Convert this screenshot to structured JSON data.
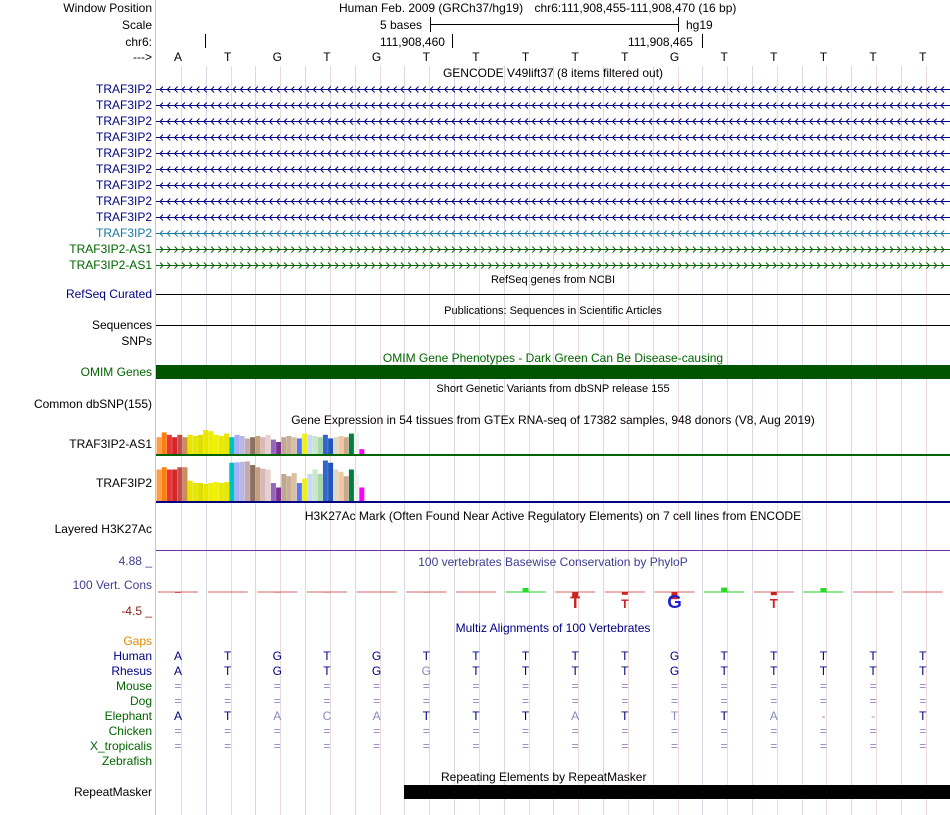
{
  "header": {
    "window_position_label": "Window Position",
    "assembly": "Human Feb. 2009 (GRCh37/hg19)",
    "position": "chr6:111,908,455-111,908,470 (16 bp)",
    "scale_label": "Scale",
    "scale_text": "5 bases",
    "scale_db": "hg19",
    "chrom_label": "chr6:",
    "coord1": "111,908,460",
    "coord2": "111,908,465",
    "strand_label": "--->"
  },
  "bases": [
    "A",
    "T",
    "G",
    "T",
    "G",
    "T",
    "T",
    "T",
    "T",
    "T",
    "G",
    "T",
    "T",
    "T",
    "T",
    "T"
  ],
  "gencode": {
    "title": "GENCODE V49lift37 (8 items filtered out)",
    "items": [
      {
        "label": "TRAF3IP2",
        "dir": "rev",
        "color": "#000080"
      },
      {
        "label": "TRAF3IP2",
        "dir": "rev",
        "color": "#000080"
      },
      {
        "label": "TRAF3IP2",
        "dir": "rev",
        "color": "#000080"
      },
      {
        "label": "TRAF3IP2",
        "dir": "rev",
        "color": "#000080"
      },
      {
        "label": "TRAF3IP2",
        "dir": "rev",
        "color": "#000080"
      },
      {
        "label": "TRAF3IP2",
        "dir": "rev",
        "color": "#000080"
      },
      {
        "label": "TRAF3IP2",
        "dir": "rev",
        "color": "#000080"
      },
      {
        "label": "TRAF3IP2",
        "dir": "rev",
        "color": "#000080"
      },
      {
        "label": "TRAF3IP2",
        "dir": "rev",
        "color": "#000080"
      },
      {
        "label": "TRAF3IP2",
        "dir": "rev",
        "color": "#1a7aa0"
      },
      {
        "label": "TRAF3IP2-AS1",
        "dir": "fwd",
        "color": "#006400"
      },
      {
        "label": "TRAF3IP2-AS1",
        "dir": "fwd",
        "color": "#006400"
      }
    ]
  },
  "refseq": {
    "title": "RefSeq genes from NCBI",
    "label": "RefSeq Curated"
  },
  "publications": {
    "title": "Publications: Sequences in Scientific Articles",
    "label": "Sequences"
  },
  "snps_label": "SNPs",
  "omim": {
    "title": "OMIM Gene Phenotypes - Dark Green Can Be Disease-causing",
    "label": "OMIM Genes",
    "color": "#005500"
  },
  "dbsnp": {
    "title": "Short Genetic Variants from dbSNP release 155",
    "label": "Common dbSNP(155)"
  },
  "gtex": {
    "title": "Gene Expression in 54 tissues from GTEx RNA-seq of 17382 samples, 948 donors (V8, Aug 2019)",
    "colors": [
      "#ff9e4a",
      "#ff7f0e",
      "#e33",
      "#d62728",
      "#c05050",
      "#cd8c5c",
      "#e6e600",
      "#e6e600",
      "#dddd00",
      "#e6e600",
      "#eeee00",
      "#f0f000",
      "#e8e800",
      "#e6e600",
      "#00c0c0",
      "#aaaaff",
      "#b8b8e0",
      "#c8a8a8",
      "#8c7060",
      "#c0a080",
      "#d8b8b8",
      "#e8d0d0",
      "#9467bd",
      "#7a3090",
      "#c0a890",
      "#c8b098",
      "#d8c0a0",
      "#5577ff",
      "#eeee22",
      "#c8d8f8",
      "#c8e8c8",
      "#a8d8a8",
      "#3366cc",
      "#2255bb",
      "#ddd8c8",
      "#f0c8a0",
      "#c8a890",
      "#008040",
      "#f0f0f0",
      "#ff00ff"
    ],
    "tracks": [
      {
        "label": "TRAF3IP2-AS1",
        "values": [
          0.7,
          0.9,
          0.8,
          0.7,
          0.8,
          0.7,
          0.8,
          0.75,
          0.8,
          1.0,
          0.95,
          0.8,
          0.75,
          0.85,
          0.7,
          0.8,
          0.75,
          0.65,
          0.7,
          0.75,
          0.7,
          0.8,
          0.6,
          0.5,
          0.7,
          0.75,
          0.7,
          0.65,
          0.85,
          0.8,
          0.75,
          0.7,
          0.8,
          0.65,
          0.7,
          0.75,
          0.7,
          0.85,
          0.9,
          0.2
        ]
      },
      {
        "label": "TRAF3IP2",
        "values": [
          0.7,
          0.75,
          0.7,
          0.7,
          0.75,
          0.75,
          0.45,
          0.4,
          0.4,
          0.38,
          0.4,
          0.42,
          0.4,
          0.42,
          0.85,
          0.86,
          0.87,
          0.88,
          0.8,
          0.75,
          0.72,
          0.7,
          0.4,
          0.3,
          0.6,
          0.55,
          0.62,
          0.4,
          0.5,
          0.6,
          0.7,
          0.6,
          0.9,
          0.85,
          0.7,
          0.65,
          0.55,
          0.7,
          0.6,
          0.3
        ]
      }
    ]
  },
  "h3k27ac": {
    "title": "H3K27Ac Mark (Often Found Near Active Regulatory Elements) on 7 cell lines from ENCODE",
    "label": "Layered H3K27Ac"
  },
  "phylop": {
    "title": "100 vertebrates Basewise Conservation by PhyloP",
    "label": "100 Vert. Cons",
    "max": "4.88 _",
    "min": "-4.5 _",
    "scores": [
      -0.2,
      0,
      -0.1,
      -0.1,
      0,
      -0.1,
      0,
      1.0,
      -1.4,
      -0.7,
      -1.8,
      1.1,
      -0.8,
      1.0,
      0,
      0
    ]
  },
  "multiz": {
    "title": "Multiz Alignments of 100 Vertebrates",
    "gaps_label": "Gaps",
    "rows": [
      {
        "label": "Human",
        "bases": [
          "A",
          "T",
          "G",
          "T",
          "G",
          "T",
          "T",
          "T",
          "T",
          "T",
          "G",
          "T",
          "T",
          "T",
          "T",
          "T"
        ]
      },
      {
        "label": "Rhesus",
        "bases": [
          "A",
          "T",
          "G",
          "T",
          "G",
          "G",
          "T",
          "T",
          "T",
          "T",
          "G",
          "T",
          "T",
          "T",
          "T",
          "T"
        ]
      },
      {
        "label": "Mouse",
        "bases": [
          "=",
          "=",
          "=",
          "=",
          "=",
          "=",
          "=",
          "=",
          "=",
          "=",
          "=",
          "=",
          "=",
          "=",
          "=",
          "="
        ]
      },
      {
        "label": "Dog",
        "bases": [
          "=",
          "=",
          "=",
          "=",
          "=",
          "=",
          "=",
          "=",
          "=",
          "=",
          "=",
          "=",
          "=",
          "=",
          "=",
          "="
        ]
      },
      {
        "label": "Elephant",
        "bases": [
          "A",
          "T",
          "A",
          "C",
          "A",
          "T",
          "T",
          "T",
          "A",
          "T",
          "T",
          "T",
          "A",
          "-",
          "-",
          "T"
        ]
      },
      {
        "label": "Chicken",
        "bases": [
          "=",
          "=",
          "=",
          "=",
          "=",
          "=",
          "=",
          "=",
          "=",
          "=",
          "=",
          "=",
          "=",
          "=",
          "=",
          "="
        ]
      },
      {
        "label": "X_tropicalis",
        "bases": [
          "=",
          "=",
          "=",
          "=",
          "=",
          "=",
          "=",
          "=",
          "=",
          "=",
          "=",
          "=",
          "=",
          "=",
          "=",
          "="
        ]
      },
      {
        "label": "Zebrafish",
        "bases": [
          "",
          "",
          "",
          "",
          "",
          "",
          "",
          "",
          "",
          "",
          "",
          "",
          "",
          "",
          "",
          ""
        ]
      }
    ]
  },
  "repeatmasker": {
    "title": "Repeating Elements by RepeatMasker",
    "label": "RepeatMasker"
  }
}
